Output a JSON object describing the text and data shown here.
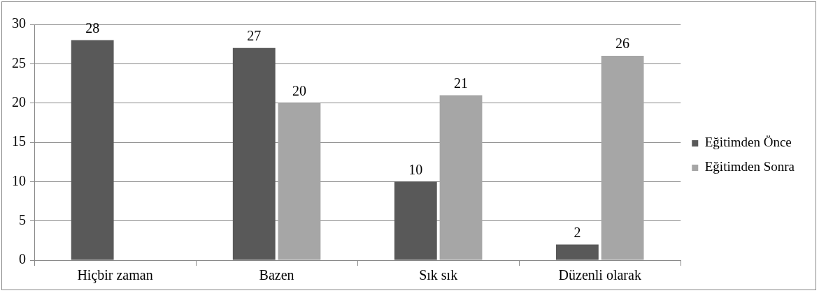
{
  "chart_data": {
    "type": "bar",
    "categories": [
      "Hiçbir zaman",
      "Bazen",
      "Sık sık",
      "Düzenli olarak"
    ],
    "series": [
      {
        "name": "Eğitimden Önce",
        "color": "#595959",
        "values": [
          28,
          27,
          10,
          2
        ]
      },
      {
        "name": "Eğitimden Sonra",
        "color": "#a6a6a6",
        "values": [
          null,
          20,
          21,
          26
        ]
      }
    ],
    "ylim": [
      0,
      30
    ],
    "yticks": [
      0,
      5,
      10,
      15,
      20,
      25,
      30
    ],
    "grid": "y",
    "legend": "right",
    "data_labels": true
  }
}
